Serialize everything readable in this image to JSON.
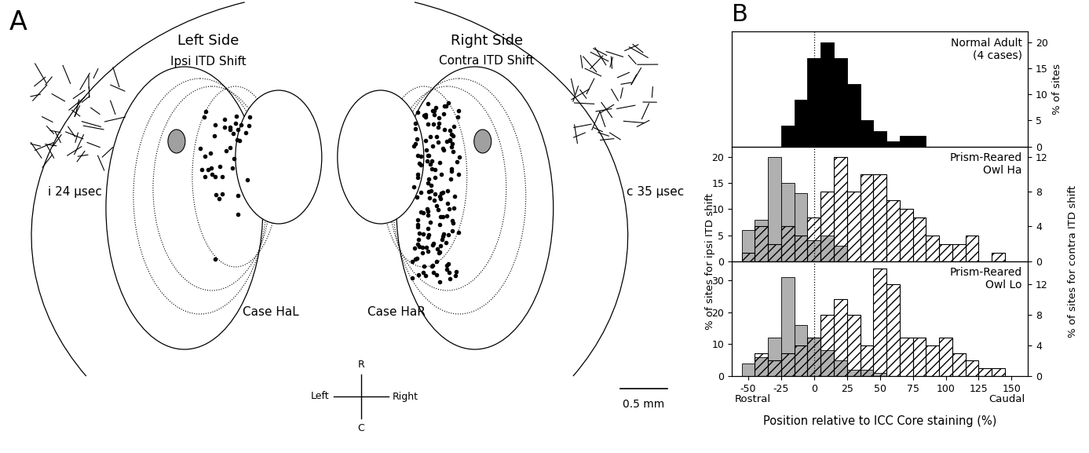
{
  "diagram": {
    "panel_label": "A",
    "panel_b_label": "B",
    "left": {
      "title": "Left Side",
      "subtitle": "Ipsi ITD Shift",
      "shift_label": "i 24 µsec",
      "case": "Case HaL"
    },
    "right": {
      "title": "Right Side",
      "subtitle": "Contra ITD Shift",
      "shift_label": "c 35 µsec",
      "case": "Case HaR"
    },
    "compass": {
      "up": "R",
      "down": "C",
      "left": "Left",
      "right": "Right"
    },
    "scale_bar": "0.5 mm"
  },
  "chart_data": [
    {
      "type": "histogram",
      "title": "Normal Adult\n(4 cases)",
      "xlim": [
        -62.5,
        162.5
      ],
      "xticks": [
        -50,
        -25,
        0,
        25,
        50,
        75,
        100,
        125,
        150
      ],
      "y2lim": [
        0,
        22
      ],
      "y2ticks": [
        0,
        5,
        10,
        15,
        20
      ],
      "y2label": "% of sites",
      "tick_labels": "y",
      "reference_line": 0,
      "series": [
        {
          "color": "#000000",
          "axis": "y2",
          "bins": [
            -25,
            -15,
            -5,
            5,
            15,
            25,
            35,
            45,
            55,
            65,
            75,
            85
          ],
          "values": [
            4,
            9,
            17,
            20,
            17,
            12,
            5,
            3,
            1,
            2,
            2
          ]
        }
      ]
    },
    {
      "type": "histogram",
      "title": "Prism-Reared\nOwl Ha",
      "xlim": [
        -62.5,
        162.5
      ],
      "xticks": [
        -50,
        -25,
        0,
        25,
        50,
        75,
        100,
        125,
        150
      ],
      "ylim": [
        0,
        22
      ],
      "yticks": [
        0,
        5,
        10,
        15,
        20
      ],
      "y2lim": [
        0,
        13.2
      ],
      "y2ticks": [
        0,
        4,
        8,
        12
      ],
      "tick_labels": "y",
      "reference_line": 0,
      "series": [
        {
          "color": "#b0b0b0",
          "bins": [
            -55,
            -45,
            -35,
            -25,
            -15,
            -5,
            5,
            15,
            25
          ],
          "values": [
            6,
            8,
            20,
            15,
            13,
            4,
            5,
            3
          ]
        },
        {
          "color": "#000000",
          "axis": "y2",
          "bins": [
            -55,
            -45,
            -35,
            -25,
            -15,
            -5,
            5,
            15,
            25,
            35,
            45,
            55,
            65,
            75,
            85,
            95,
            105,
            115,
            125,
            135,
            145
          ],
          "values": [
            1,
            4,
            2,
            4,
            3,
            5,
            8,
            12,
            8,
            10,
            10,
            7,
            6,
            5,
            3,
            2,
            2,
            3,
            0,
            1
          ]
        }
      ]
    },
    {
      "type": "histogram",
      "title": "Prism-Reared\nOwl Lo",
      "xlim": [
        -62.5,
        162.5
      ],
      "xticks": [
        -50,
        -25,
        0,
        25,
        50,
        75,
        100,
        125,
        150
      ],
      "ylim": [
        0,
        36
      ],
      "yticks": [
        0,
        10,
        20,
        30
      ],
      "y2lim": [
        0,
        15
      ],
      "y2ticks": [
        0,
        4,
        8,
        12
      ],
      "xlabel": "Position relative to ICC Core staining (%)",
      "ylabel": "% of sites for ipsi ITD shift",
      "y2label": "% of sites for contra ITD shift",
      "annotations": [
        "Rostral",
        "Caudal"
      ],
      "reference_line": 0,
      "series": [
        {
          "color": "#b0b0b0",
          "bins": [
            -55,
            -45,
            -35,
            -25,
            -15,
            -5,
            5,
            15,
            25,
            35,
            45,
            55
          ],
          "values": [
            4,
            6,
            12,
            31,
            16,
            12,
            8,
            5,
            2,
            2,
            1
          ]
        },
        {
          "color": "#000000",
          "axis": "y2",
          "bins": [
            -45,
            -35,
            -25,
            -15,
            -5,
            5,
            15,
            25,
            35,
            45,
            55,
            65,
            75,
            85,
            95,
            105,
            115,
            125,
            135,
            145
          ],
          "values": [
            3,
            2,
            3,
            4,
            5,
            8,
            10,
            8,
            4,
            14,
            12,
            5,
            5,
            4,
            5,
            3,
            2,
            1,
            1
          ]
        }
      ]
    }
  ]
}
